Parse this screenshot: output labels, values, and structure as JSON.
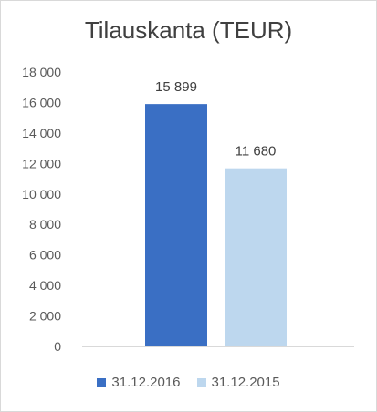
{
  "chart_data": {
    "type": "bar",
    "title": "Tilauskanta (TEUR)",
    "xlabel": "",
    "ylabel": "",
    "ylim": [
      0,
      18000
    ],
    "y_ticks": [
      "0",
      "2 000",
      "4 000",
      "6 000",
      "8 000",
      "10 000",
      "12 000",
      "14 000",
      "16 000",
      "18 000"
    ],
    "legend_position": "bottom",
    "grid": false,
    "series": [
      {
        "name": "31.12.2016",
        "value": 15899,
        "label": "15 899",
        "color": "#3a6fc4"
      },
      {
        "name": "31.12.2015",
        "value": 11680,
        "label": "11 680",
        "color": "#bdd7ee"
      }
    ]
  }
}
